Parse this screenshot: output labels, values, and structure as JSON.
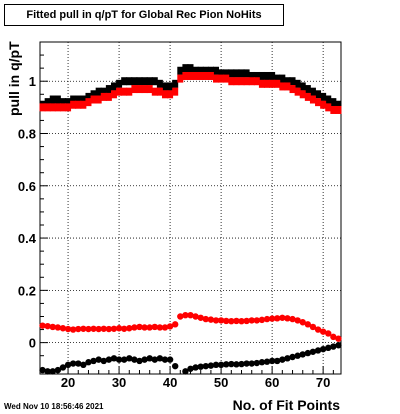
{
  "title": "Fitted pull in q/pT for Global Rec Pion NoHits",
  "timestamp": "Wed Nov 10 18:56:46 2021",
  "chart_data": {
    "type": "scatter",
    "xlabel": "No. of Fit Points",
    "ylabel": "pull in q/pT",
    "xlim": [
      14.5,
      73.5
    ],
    "ylim": [
      -0.12,
      1.15
    ],
    "xticks": [
      20,
      30,
      40,
      50,
      60,
      70
    ],
    "yticks": [
      0,
      0.2,
      0.4,
      0.6,
      0.8,
      1
    ],
    "ytick_labels": [
      "0",
      "0.2",
      "0.4",
      "0.6",
      "0.8",
      "1"
    ],
    "grid": true,
    "series": [
      {
        "color": "#000000",
        "marker": "square",
        "x": [
          15,
          16,
          17,
          18,
          19,
          20,
          21,
          22,
          23,
          24,
          25,
          26,
          27,
          28,
          29,
          30,
          31,
          32,
          33,
          34,
          35,
          36,
          37,
          38,
          39,
          40,
          41,
          42,
          43,
          44,
          45,
          46,
          47,
          48,
          49,
          50,
          51,
          52,
          53,
          54,
          55,
          56,
          57,
          58,
          59,
          60,
          61,
          62,
          63,
          64,
          65,
          66,
          67,
          68,
          69,
          70,
          71,
          72,
          73
        ],
        "y": [
          0.91,
          0.92,
          0.93,
          0.93,
          0.92,
          0.92,
          0.93,
          0.93,
          0.93,
          0.94,
          0.95,
          0.96,
          0.96,
          0.97,
          0.98,
          0.99,
          1.0,
          1.0,
          1.0,
          1.0,
          1.0,
          1.0,
          1.0,
          0.99,
          0.98,
          0.98,
          0.99,
          1.04,
          1.05,
          1.05,
          1.04,
          1.04,
          1.04,
          1.04,
          1.04,
          1.03,
          1.03,
          1.03,
          1.03,
          1.03,
          1.03,
          1.02,
          1.02,
          1.02,
          1.02,
          1.02,
          1.01,
          1.01,
          1.0,
          1.0,
          0.99,
          0.98,
          0.97,
          0.96,
          0.95,
          0.94,
          0.93,
          0.92,
          0.91
        ]
      },
      {
        "color": "#ff0000",
        "marker": "square",
        "x": [
          15,
          16,
          17,
          18,
          19,
          20,
          21,
          22,
          23,
          24,
          25,
          26,
          27,
          28,
          29,
          30,
          31,
          32,
          33,
          34,
          35,
          36,
          37,
          38,
          39,
          40,
          41,
          42,
          43,
          44,
          45,
          46,
          47,
          48,
          49,
          50,
          51,
          52,
          53,
          54,
          55,
          56,
          57,
          58,
          59,
          60,
          61,
          62,
          63,
          64,
          65,
          66,
          67,
          68,
          69,
          70,
          71,
          72,
          73
        ],
        "y": [
          0.9,
          0.9,
          0.9,
          0.9,
          0.9,
          0.9,
          0.91,
          0.91,
          0.91,
          0.92,
          0.93,
          0.93,
          0.94,
          0.94,
          0.95,
          0.96,
          0.96,
          0.96,
          0.97,
          0.97,
          0.97,
          0.97,
          0.96,
          0.96,
          0.95,
          0.95,
          0.96,
          1.01,
          1.02,
          1.02,
          1.02,
          1.02,
          1.02,
          1.02,
          1.01,
          1.01,
          1.01,
          1.0,
          1.0,
          1.0,
          1.0,
          1.0,
          1.0,
          0.99,
          0.99,
          0.99,
          0.99,
          0.98,
          0.98,
          0.97,
          0.96,
          0.95,
          0.94,
          0.93,
          0.92,
          0.91,
          0.9,
          0.89,
          0.89
        ]
      },
      {
        "color": "#ff0000",
        "marker": "circle",
        "x": [
          15,
          16,
          17,
          18,
          19,
          20,
          21,
          22,
          23,
          24,
          25,
          26,
          27,
          28,
          29,
          30,
          31,
          32,
          33,
          34,
          35,
          36,
          37,
          38,
          39,
          40,
          41,
          42,
          43,
          44,
          45,
          46,
          47,
          48,
          49,
          50,
          51,
          52,
          53,
          54,
          55,
          56,
          57,
          58,
          59,
          60,
          61,
          62,
          63,
          64,
          65,
          66,
          67,
          68,
          69,
          70,
          71,
          72,
          73
        ],
        "y": [
          0.065,
          0.063,
          0.06,
          0.058,
          0.055,
          0.052,
          0.05,
          0.052,
          0.053,
          0.052,
          0.053,
          0.052,
          0.053,
          0.052,
          0.053,
          0.055,
          0.053,
          0.055,
          0.058,
          0.06,
          0.058,
          0.058,
          0.06,
          0.058,
          0.058,
          0.062,
          0.07,
          0.1,
          0.105,
          0.105,
          0.1,
          0.095,
          0.09,
          0.088,
          0.085,
          0.085,
          0.083,
          0.082,
          0.083,
          0.082,
          0.083,
          0.085,
          0.085,
          0.087,
          0.09,
          0.092,
          0.093,
          0.095,
          0.093,
          0.09,
          0.085,
          0.078,
          0.07,
          0.06,
          0.05,
          0.042,
          0.035,
          0.022,
          0.015
        ]
      },
      {
        "color": "#000000",
        "marker": "circle",
        "x": [
          15,
          16,
          17,
          18,
          19,
          20,
          21,
          22,
          23,
          24,
          25,
          26,
          27,
          28,
          29,
          30,
          31,
          32,
          33,
          34,
          35,
          36,
          37,
          38,
          39,
          40,
          41,
          43,
          44,
          45,
          46,
          47,
          48,
          49,
          50,
          51,
          52,
          53,
          54,
          55,
          56,
          57,
          58,
          59,
          60,
          61,
          62,
          63,
          64,
          65,
          66,
          67,
          68,
          69,
          70,
          71,
          72,
          73
        ],
        "y": [
          -0.105,
          -0.11,
          -0.11,
          -0.105,
          -0.095,
          -0.085,
          -0.08,
          -0.08,
          -0.085,
          -0.075,
          -0.07,
          -0.065,
          -0.07,
          -0.065,
          -0.06,
          -0.065,
          -0.065,
          -0.06,
          -0.065,
          -0.07,
          -0.065,
          -0.06,
          -0.065,
          -0.06,
          -0.065,
          -0.065,
          -0.09,
          -0.11,
          -0.1,
          -0.095,
          -0.092,
          -0.09,
          -0.088,
          -0.085,
          -0.085,
          -0.083,
          -0.082,
          -0.083,
          -0.082,
          -0.08,
          -0.08,
          -0.078,
          -0.075,
          -0.073,
          -0.07,
          -0.07,
          -0.065,
          -0.06,
          -0.055,
          -0.05,
          -0.045,
          -0.04,
          -0.035,
          -0.03,
          -0.025,
          -0.02,
          -0.015,
          -0.01
        ]
      }
    ]
  }
}
